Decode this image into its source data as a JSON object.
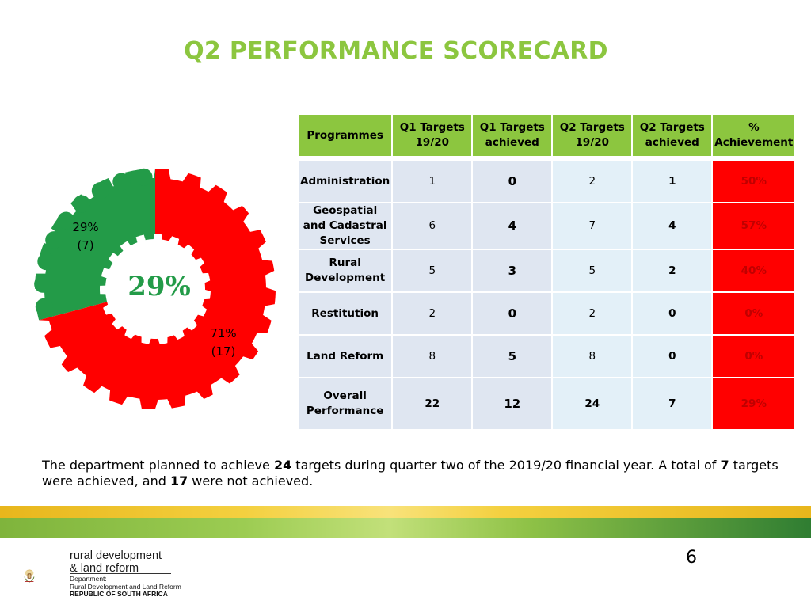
{
  "title": "Q2 PERFORMANCE SCORECARD",
  "chart_data": {
    "type": "pie",
    "style": "donut",
    "slices": [
      {
        "percent_label": "29%",
        "count_label": "(7)",
        "value": 7,
        "color": "#239b48"
      },
      {
        "percent_label": "71%",
        "count_label": "(17)",
        "value": 17,
        "color": "#ff0000"
      }
    ],
    "center_label": "29%",
    "center_label_color": "#239b48"
  },
  "table": {
    "headers": [
      "Programmes",
      "Q1 Targets 19/20",
      "Q1 Targets achieved",
      "Q2 Targets 19/20",
      "Q2 Targets achieved",
      "% Achievement"
    ],
    "rows": [
      {
        "programme": "Administration",
        "q1_targets": "1",
        "q1_achieved": "0",
        "q2_targets": "2",
        "q2_achieved": "1",
        "achievement": "50%"
      },
      {
        "programme": "Geospatial and Cadastral Services",
        "q1_targets": "6",
        "q1_achieved": "4",
        "q2_targets": "7",
        "q2_achieved": "4",
        "achievement": "57%"
      },
      {
        "programme": "Rural Development",
        "q1_targets": "5",
        "q1_achieved": "3",
        "q2_targets": "5",
        "q2_achieved": "2",
        "achievement": "40%"
      },
      {
        "programme": "Restitution",
        "q1_targets": "2",
        "q1_achieved": "0",
        "q2_targets": "2",
        "q2_achieved": "0",
        "achievement": "0%"
      },
      {
        "programme": "Land Reform",
        "q1_targets": "8",
        "q1_achieved": "5",
        "q2_targets": "8",
        "q2_achieved": "0",
        "achievement": "0%"
      },
      {
        "programme": "Overall Performance",
        "q1_targets": "22",
        "q1_achieved": "12",
        "q2_targets": "24",
        "q2_achieved": "7",
        "achievement": "29%"
      }
    ]
  },
  "summary": {
    "part1": "The department planned to achieve ",
    "n1": "24",
    "part2": " targets during quarter two of the 2019/20 financial year. A total of ",
    "n2": "7",
    "part3": " targets were achieved, and ",
    "n3": "17",
    "part4": " were not achieved."
  },
  "page_number": "6",
  "logo": {
    "line1": "rural development",
    "line2": "& land reform",
    "dept1": "Department:",
    "dept2": "Rural Development and Land Reform",
    "country": "REPUBLIC OF SOUTH AFRICA"
  },
  "colors": {
    "accent_green": "#8cc63f",
    "red": "#ff0000",
    "dark_green": "#239b48"
  }
}
